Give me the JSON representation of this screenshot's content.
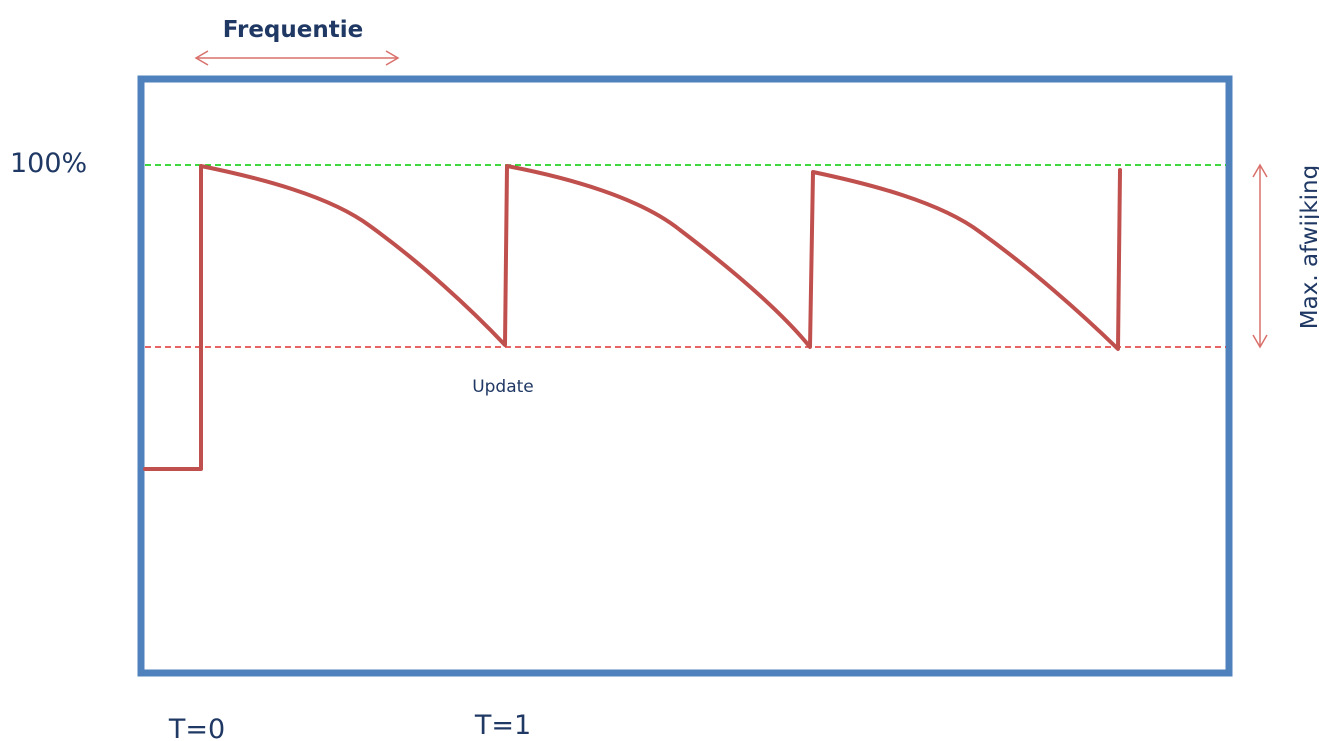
{
  "labels": {
    "frequency": "Frequentie",
    "max_level": "100%",
    "max_deviation": "Max. afwijking",
    "update": "Update",
    "t0": "T=0",
    "t1": "T=1"
  },
  "colors": {
    "frame": "#4f81bd",
    "signal": "#c0504d",
    "upper_line": "#00cc00",
    "lower_line": "#e03030",
    "arrow": "#d9706c",
    "text": "#1f3864"
  }
}
